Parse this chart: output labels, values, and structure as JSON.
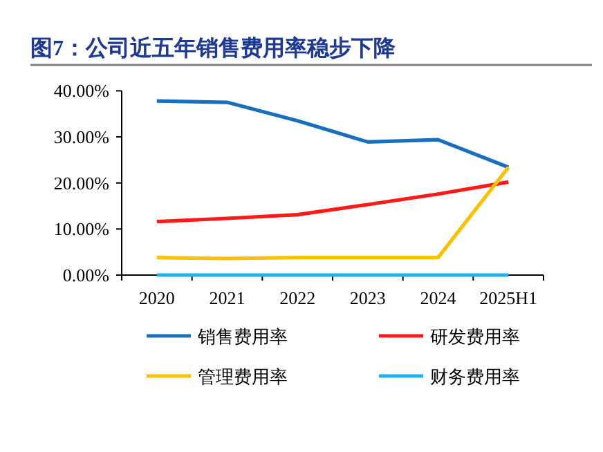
{
  "chart_data": {
    "type": "line",
    "title": "图7：公司近五年销售费用率稳步下降",
    "categories": [
      "2020",
      "2021",
      "2022",
      "2023",
      "2024",
      "2025H1"
    ],
    "series": [
      {
        "name": "销售费用率",
        "color": "#1a6fbd",
        "values": [
          37.8,
          37.5,
          33.5,
          28.9,
          29.4,
          23.4
        ]
      },
      {
        "name": "研发费用率",
        "color": "#ff1a1a",
        "values": [
          11.6,
          12.3,
          13.1,
          15.3,
          17.6,
          20.2
        ]
      },
      {
        "name": "管理费用率",
        "color": "#ffc000",
        "values": [
          3.8,
          3.6,
          3.8,
          3.8,
          3.8,
          23.4
        ]
      },
      {
        "name": "财务费用率",
        "color": "#1fb4f0",
        "values": [
          0,
          0,
          0,
          0,
          0,
          0
        ]
      }
    ],
    "ylim": [
      0,
      40
    ],
    "yticks": [
      {
        "value": 0,
        "label": "0.00%"
      },
      {
        "value": 10,
        "label": "10.00%"
      },
      {
        "value": 20,
        "label": "20.00%"
      },
      {
        "value": 30,
        "label": "30.00%"
      },
      {
        "value": 40,
        "label": "40.00%"
      }
    ],
    "grid": false,
    "legend": "bottom",
    "marker": "none",
    "line_style": "solid"
  }
}
